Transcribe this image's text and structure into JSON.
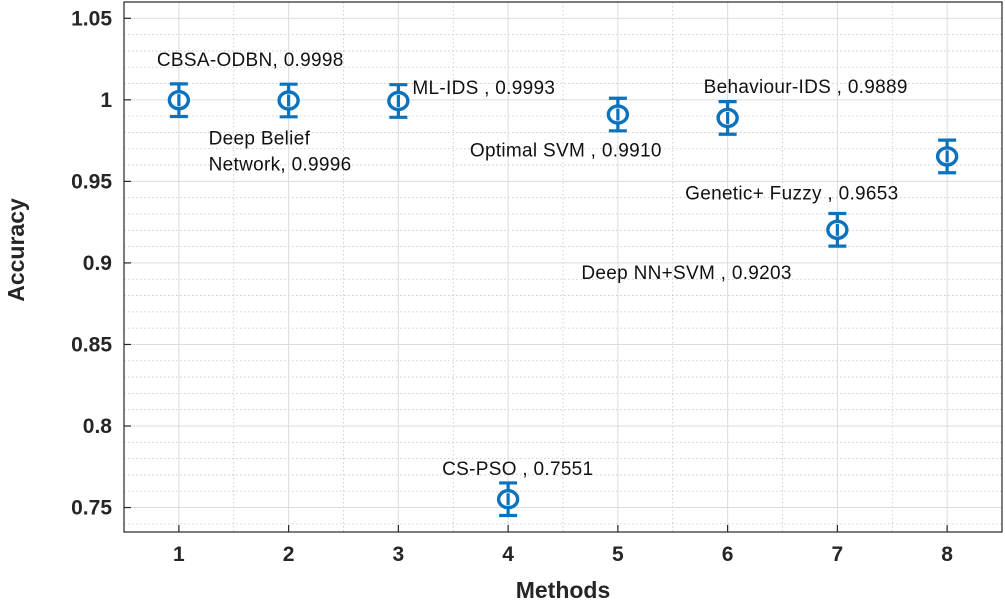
{
  "chart_data": {
    "type": "scatter",
    "title": "",
    "xlabel": "Methods",
    "ylabel": "Accuracy",
    "xlim": [
      0.5,
      8.5
    ],
    "ylim": [
      0.735,
      1.06
    ],
    "xticks": [
      "1",
      "2",
      "3",
      "4",
      "5",
      "6",
      "7",
      "8"
    ],
    "yticks": [
      "0.75",
      "0.8",
      "0.85",
      "0.9",
      "0.95",
      "1",
      "1.05"
    ],
    "grid": true,
    "series": [
      {
        "name": "Accuracy",
        "color": "#0b72bd",
        "marker": "circle",
        "error": 0.01,
        "points": [
          {
            "x": 1,
            "y": 0.9998,
            "label": "CBSA-ODBN, 0.9998"
          },
          {
            "x": 2,
            "y": 0.9996,
            "label": "Deep Belief Network, 0.9996",
            "label_lines": [
              "Deep Belief",
              "Network, 0.9996"
            ]
          },
          {
            "x": 3,
            "y": 0.9993,
            "label": "ML-IDS , 0.9993"
          },
          {
            "x": 4,
            "y": 0.7551,
            "label": "CS-PSO , 0.7551"
          },
          {
            "x": 5,
            "y": 0.991,
            "label": "Optimal SVM , 0.9910"
          },
          {
            "x": 6,
            "y": 0.9889,
            "label": "Behaviour-IDS , 0.9889"
          },
          {
            "x": 7,
            "y": 0.9203,
            "label": "Deep NN+SVM , 0.9203"
          },
          {
            "x": 8,
            "y": 0.9653,
            "label": "Genetic+ Fuzzy , 0.9653"
          }
        ]
      }
    ]
  }
}
